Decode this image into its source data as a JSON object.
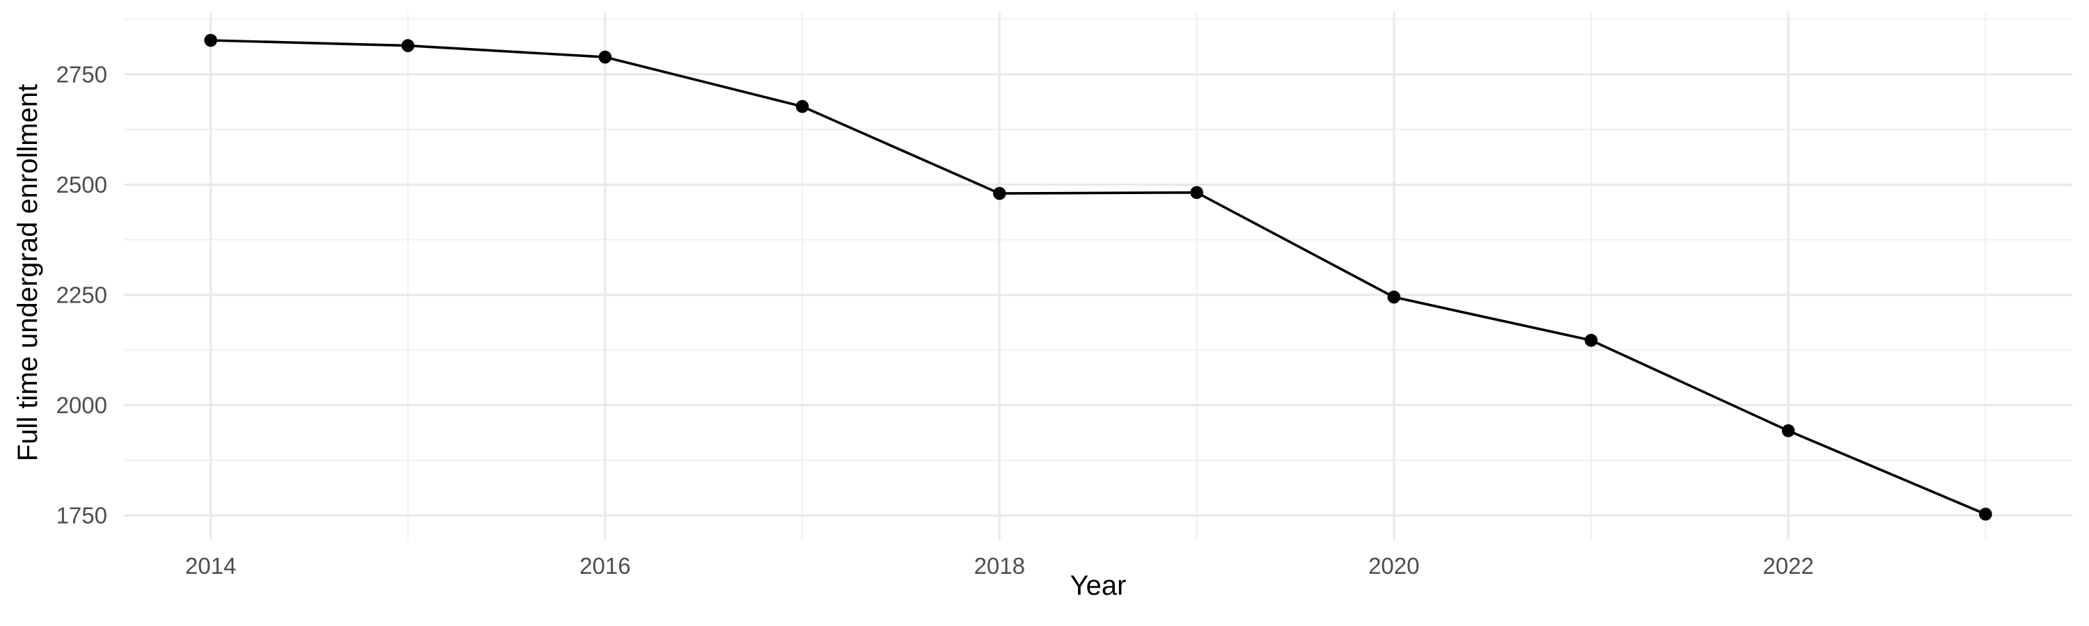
{
  "chart_data": {
    "type": "line",
    "title": "",
    "xlabel": "Year",
    "ylabel": "Full time undergrad enrollment",
    "x": [
      2014,
      2015,
      2016,
      2017,
      2018,
      2019,
      2020,
      2021,
      2022,
      2023
    ],
    "series": [
      {
        "name": "Full time undergrad enrollment",
        "values": [
          2827,
          2815,
          2789,
          2677,
          2480,
          2482,
          2245,
          2147,
          1942,
          1753
        ]
      }
    ],
    "xlim": [
      2013.56,
      2023.44
    ],
    "ylim": [
      1695,
      2890
    ],
    "x_ticks_major": [
      2014,
      2016,
      2018,
      2020,
      2022
    ],
    "x_ticks_minor": [
      2015,
      2017,
      2019,
      2021,
      2023
    ],
    "y_ticks_major": [
      1750,
      2000,
      2250,
      2500,
      2750
    ],
    "y_ticks_minor": [
      1875,
      2125,
      2375,
      2625,
      2875
    ],
    "grid": true,
    "legend": false,
    "point_markers": true,
    "colors": {
      "line": "#000000",
      "point": "#000000",
      "grid_major": "#E8E8E8",
      "grid_minor": "#F0F0F0",
      "tick_label": "#4D4D4D",
      "axis_title": "#000000",
      "background": "#FFFFFF"
    }
  }
}
